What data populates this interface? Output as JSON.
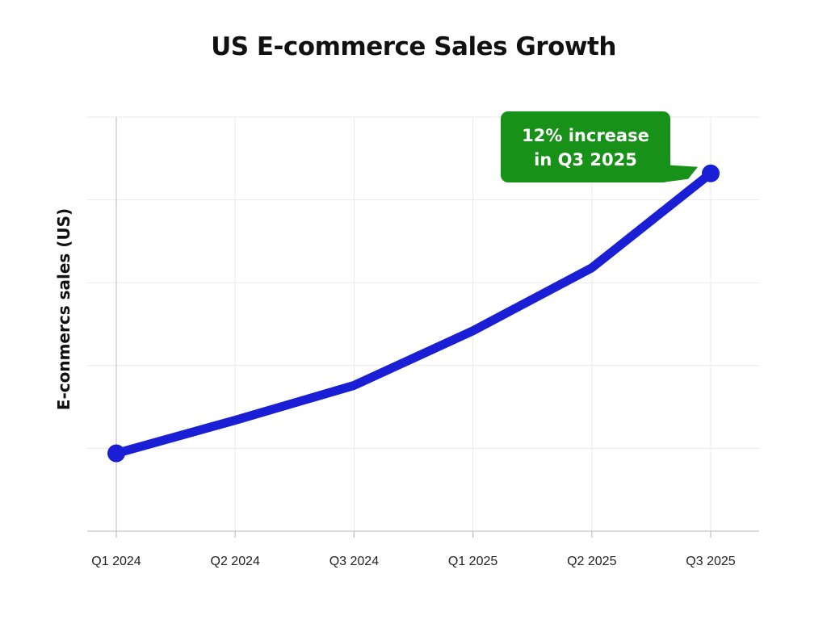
{
  "chart_data": {
    "type": "line",
    "title": "US E-commerce Sales Growth",
    "xlabel": "",
    "ylabel": "E-conmercs sales (US)",
    "categories": [
      "Q1 2024",
      "Q2 2024",
      "Q3 2024",
      "Q1 2025",
      "Q2 2025",
      "Q3 2025"
    ],
    "series": [
      {
        "values": [
          0.94,
          1.34,
          1.76,
          2.42,
          3.18,
          4.32
        ]
      }
    ],
    "ylim": [
      0,
      5
    ],
    "y_ticks_labeled": false,
    "grid": true,
    "series_color": "#1a1fd6",
    "annotation": {
      "lines": [
        "12% increase",
        "in Q3 2025"
      ],
      "target_category": "Q3 2025",
      "color": "#179117"
    }
  }
}
